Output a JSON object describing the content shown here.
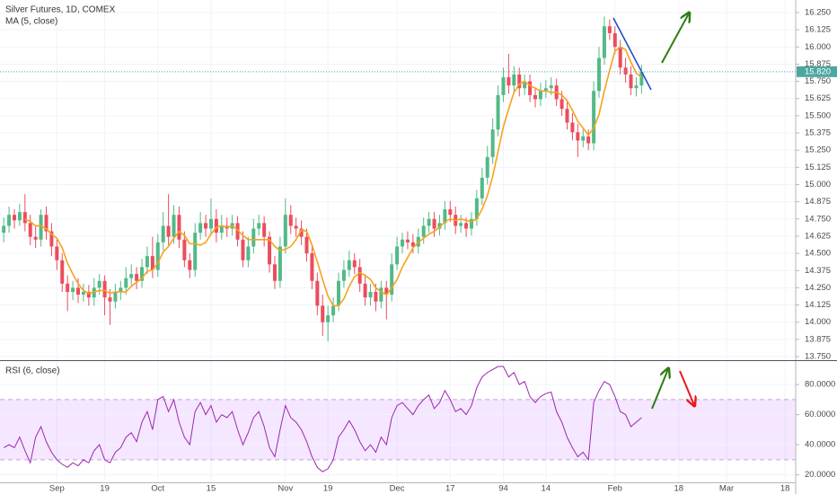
{
  "chart_data": [
    {
      "type": "candlestick",
      "title": "Silver Futures, 1D, COMEX",
      "up_color": "#53b987",
      "down_color": "#eb4d5c",
      "xlim": [
        -0.7,
        149
      ],
      "ylim": [
        13.724,
        16.341
      ],
      "xticks": [
        {
          "value": 10,
          "label": "Sep"
        },
        19,
        {
          "value": 29,
          "label": "Oct"
        },
        {
          "value": 39,
          "label": "15"
        },
        {
          "value": 53,
          "label": "Nov"
        },
        {
          "value": 61,
          "label": "19"
        },
        {
          "value": 74,
          "label": "Dec"
        },
        {
          "value": 84,
          "label": "17"
        },
        94,
        {
          "value": 102,
          "label": "14"
        },
        {
          "value": 115,
          "label": "Feb"
        },
        {
          "value": 127,
          "label": "18"
        },
        {
          "value": 136,
          "label": "Mar"
        },
        {
          "value": 147,
          "label": "18"
        }
      ],
      "yticks": [
        {
          "value": 13.75,
          "label": "13.750"
        },
        {
          "value": 13.875,
          "label": "13.875"
        },
        {
          "value": 14,
          "label": "14.000"
        },
        {
          "value": 14.125,
          "label": "14.125"
        },
        {
          "value": 14.25,
          "label": "14.250"
        },
        {
          "value": 14.375,
          "label": "14.375"
        },
        {
          "value": 14.5,
          "label": "14.500"
        },
        {
          "value": 14.625,
          "label": "14.625"
        },
        {
          "value": 14.75,
          "label": "14.750"
        },
        {
          "value": 14.875,
          "label": "14.875"
        },
        {
          "value": 15,
          "label": "15.000"
        },
        {
          "value": 15.125,
          "label": "15.125"
        },
        {
          "value": 15.25,
          "label": "15.250"
        },
        {
          "value": 15.375,
          "label": "15.375"
        },
        {
          "value": 15.5,
          "label": "15.500"
        },
        {
          "value": 15.625,
          "label": "15.625"
        },
        {
          "value": 15.75,
          "label": "15.750"
        },
        {
          "value": 15.875,
          "label": "15.875"
        },
        {
          "value": 16,
          "label": "16.000"
        },
        {
          "value": 16.125,
          "label": "16.125"
        },
        {
          "value": 16.25,
          "label": "16.250"
        }
      ],
      "grid": true,
      "last_price": {
        "value": 15.82,
        "label": "15.820"
      },
      "last_price_color": "#4ca7a1",
      "open": [
        14.65,
        14.7,
        14.78,
        14.74,
        14.8,
        14.72,
        14.62,
        14.6,
        14.78,
        14.66,
        14.55,
        14.45,
        14.28,
        14.22,
        14.25,
        14.2,
        14.22,
        14.18,
        14.25,
        14.3,
        14.18,
        14.15,
        14.22,
        14.25,
        14.32,
        14.35,
        14.3,
        14.4,
        14.48,
        14.38,
        14.58,
        14.7,
        14.62,
        14.78,
        14.6,
        14.45,
        14.38,
        14.65,
        14.72,
        14.68,
        14.75,
        14.65,
        14.7,
        14.68,
        14.72,
        14.6,
        14.45,
        14.55,
        14.68,
        14.72,
        14.62,
        14.42,
        14.3,
        14.55,
        14.78,
        14.7,
        14.68,
        14.62,
        14.5,
        14.3,
        14.12,
        14.0,
        14.05,
        14.12,
        14.3,
        14.38,
        14.45,
        14.4,
        14.28,
        14.18,
        14.22,
        14.15,
        14.25,
        14.2,
        14.42,
        14.55,
        14.6,
        14.58,
        14.55,
        14.62,
        14.7,
        14.75,
        14.68,
        14.72,
        14.82,
        14.78,
        14.7,
        14.72,
        14.68,
        14.75,
        14.9,
        15.05,
        15.2,
        15.4,
        15.65,
        15.78,
        15.72,
        15.8,
        15.7,
        15.75,
        15.65,
        15.62,
        15.68,
        15.7,
        15.72,
        15.62,
        15.55,
        15.45,
        15.38,
        15.32,
        15.35,
        15.3,
        15.68,
        15.92,
        16.15,
        16.1,
        16.0,
        15.85,
        15.8,
        15.7,
        15.72
      ],
      "high": [
        14.76,
        14.84,
        14.82,
        14.86,
        14.93,
        14.78,
        14.7,
        14.82,
        14.84,
        14.72,
        14.6,
        14.5,
        14.34,
        14.3,
        14.32,
        14.28,
        14.27,
        14.32,
        14.35,
        14.34,
        14.24,
        14.28,
        14.3,
        14.4,
        14.42,
        14.4,
        14.46,
        14.55,
        14.62,
        14.64,
        14.8,
        14.93,
        14.85,
        14.84,
        14.66,
        14.5,
        14.72,
        14.8,
        14.78,
        14.9,
        14.82,
        14.78,
        14.76,
        14.78,
        14.77,
        14.66,
        14.62,
        14.75,
        14.78,
        14.77,
        14.66,
        14.48,
        14.62,
        14.9,
        14.85,
        14.76,
        14.74,
        14.68,
        14.56,
        14.36,
        14.2,
        14.12,
        14.18,
        14.36,
        14.45,
        14.52,
        14.5,
        14.46,
        14.34,
        14.28,
        14.28,
        14.3,
        14.3,
        14.5,
        14.62,
        14.65,
        14.66,
        14.64,
        14.68,
        14.76,
        14.8,
        14.8,
        14.78,
        14.88,
        14.88,
        14.84,
        14.78,
        14.76,
        14.8,
        14.96,
        15.12,
        15.28,
        15.48,
        15.72,
        15.85,
        15.95,
        15.86,
        15.85,
        15.8,
        15.8,
        15.7,
        15.74,
        15.76,
        15.78,
        15.77,
        15.68,
        15.6,
        15.52,
        15.44,
        15.4,
        15.4,
        15.75,
        16.0,
        16.22,
        16.2,
        16.15,
        16.05,
        15.92,
        15.86,
        15.78,
        15.87
      ],
      "low": [
        14.58,
        14.65,
        14.68,
        14.7,
        14.66,
        14.56,
        14.54,
        14.55,
        14.6,
        14.48,
        14.38,
        14.22,
        14.08,
        14.16,
        14.14,
        14.15,
        14.12,
        14.12,
        14.2,
        14.05,
        13.98,
        14.1,
        14.16,
        14.2,
        14.27,
        14.24,
        14.25,
        14.35,
        14.32,
        14.33,
        14.52,
        14.56,
        14.57,
        14.54,
        14.4,
        14.32,
        14.33,
        14.6,
        14.62,
        14.63,
        14.58,
        14.6,
        14.62,
        14.63,
        14.55,
        14.4,
        14.4,
        14.5,
        14.63,
        14.55,
        14.36,
        14.24,
        14.25,
        14.5,
        14.64,
        14.62,
        14.56,
        14.44,
        14.24,
        14.05,
        13.9,
        13.86,
        14.0,
        14.08,
        14.25,
        14.33,
        14.35,
        14.22,
        14.12,
        14.12,
        14.08,
        14.1,
        14.02,
        14.15,
        14.38,
        14.5,
        14.53,
        14.5,
        14.5,
        14.57,
        14.65,
        14.62,
        14.63,
        14.67,
        14.73,
        14.64,
        14.65,
        14.62,
        14.63,
        14.7,
        14.85,
        15.0,
        15.15,
        15.35,
        15.6,
        15.66,
        15.67,
        15.64,
        15.65,
        15.6,
        15.56,
        15.57,
        15.63,
        15.65,
        15.57,
        15.5,
        15.4,
        15.32,
        15.2,
        15.27,
        15.25,
        15.25,
        15.63,
        15.87,
        16.05,
        15.95,
        15.8,
        15.74,
        15.65,
        15.64,
        15.66
      ],
      "close": [
        14.7,
        14.78,
        14.74,
        14.8,
        14.72,
        14.62,
        14.6,
        14.78,
        14.66,
        14.55,
        14.45,
        14.28,
        14.22,
        14.25,
        14.2,
        14.22,
        14.18,
        14.25,
        14.3,
        14.18,
        14.15,
        14.22,
        14.25,
        14.32,
        14.35,
        14.3,
        14.4,
        14.48,
        14.38,
        14.58,
        14.7,
        14.62,
        14.78,
        14.6,
        14.45,
        14.38,
        14.65,
        14.72,
        14.68,
        14.75,
        14.65,
        14.7,
        14.68,
        14.72,
        14.6,
        14.45,
        14.55,
        14.68,
        14.72,
        14.62,
        14.42,
        14.3,
        14.55,
        14.78,
        14.7,
        14.68,
        14.62,
        14.5,
        14.3,
        14.12,
        14.0,
        14.05,
        14.12,
        14.3,
        14.38,
        14.45,
        14.4,
        14.28,
        14.18,
        14.22,
        14.15,
        14.25,
        14.2,
        14.42,
        14.55,
        14.6,
        14.58,
        14.55,
        14.62,
        14.7,
        14.75,
        14.68,
        14.72,
        14.82,
        14.78,
        14.7,
        14.72,
        14.68,
        14.75,
        14.9,
        15.05,
        15.2,
        15.4,
        15.65,
        15.78,
        15.72,
        15.8,
        15.7,
        15.75,
        15.65,
        15.62,
        15.68,
        15.7,
        15.72,
        15.62,
        15.55,
        15.45,
        15.38,
        15.32,
        15.35,
        15.3,
        15.68,
        15.92,
        16.15,
        16.1,
        16.0,
        15.85,
        15.8,
        15.7,
        15.72,
        15.82
      ],
      "series": [
        {
          "name": "MA (5, close)",
          "color": "#f7a21b",
          "values": [
            null,
            null,
            null,
            null,
            14.75,
            14.73,
            14.7,
            14.7,
            14.68,
            14.64,
            14.61,
            14.54,
            14.43,
            14.35,
            14.28,
            14.23,
            14.21,
            14.22,
            14.23,
            14.23,
            14.21,
            14.22,
            14.22,
            14.22,
            14.26,
            14.29,
            14.32,
            14.37,
            14.38,
            14.43,
            14.51,
            14.55,
            14.61,
            14.66,
            14.63,
            14.57,
            14.57,
            14.56,
            14.58,
            14.64,
            14.69,
            14.7,
            14.69,
            14.7,
            14.67,
            14.63,
            14.6,
            14.6,
            14.6,
            14.6,
            14.6,
            14.55,
            14.52,
            14.53,
            14.55,
            14.6,
            14.67,
            14.66,
            14.56,
            14.44,
            14.31,
            14.19,
            14.12,
            14.12,
            14.17,
            14.26,
            14.33,
            14.36,
            14.34,
            14.31,
            14.25,
            14.22,
            14.2,
            14.25,
            14.31,
            14.4,
            14.47,
            14.54,
            14.58,
            14.61,
            14.64,
            14.66,
            14.69,
            14.73,
            14.75,
            14.74,
            14.75,
            14.74,
            14.73,
            14.75,
            14.82,
            14.92,
            15.06,
            15.24,
            15.42,
            15.55,
            15.67,
            15.73,
            15.75,
            15.72,
            15.7,
            15.68,
            15.68,
            15.67,
            15.67,
            15.65,
            15.61,
            15.54,
            15.46,
            15.41,
            15.36,
            15.41,
            15.51,
            15.68,
            15.83,
            15.97,
            16.0,
            15.98,
            15.89,
            15.81,
            15.78
          ]
        }
      ]
    },
    {
      "type": "line",
      "ylim": [
        15,
        95
      ],
      "yticks": [
        {
          "value": 20,
          "label": "20.0000"
        },
        {
          "value": 40,
          "label": "40.0000"
        },
        {
          "value": 60,
          "label": "60.0000"
        },
        {
          "value": 80,
          "label": "80.0000"
        }
      ],
      "band": [
        30,
        70
      ],
      "band_color": "#9915ff",
      "series": [
        {
          "name": "RSI (6, close)",
          "color": "#9c27b0",
          "values": [
            38,
            40,
            38,
            45,
            36,
            28,
            45,
            52,
            42,
            35,
            30,
            27,
            25,
            28,
            26,
            30,
            28,
            36,
            40,
            30,
            28,
            35,
            38,
            45,
            48,
            42,
            55,
            62,
            50,
            70,
            72,
            62,
            70,
            55,
            45,
            40,
            62,
            68,
            60,
            66,
            55,
            60,
            58,
            62,
            50,
            40,
            48,
            58,
            62,
            52,
            38,
            32,
            50,
            66,
            58,
            55,
            50,
            42,
            32,
            25,
            22,
            24,
            30,
            45,
            50,
            56,
            50,
            42,
            36,
            40,
            35,
            45,
            40,
            58,
            66,
            68,
            64,
            60,
            66,
            70,
            73,
            64,
            68,
            76,
            70,
            62,
            64,
            60,
            66,
            78,
            85,
            88,
            90,
            92,
            92,
            85,
            88,
            80,
            82,
            72,
            68,
            72,
            74,
            75,
            62,
            55,
            45,
            38,
            32,
            35,
            30,
            68,
            76,
            82,
            80,
            72,
            62,
            60,
            52,
            55,
            58
          ]
        }
      ]
    }
  ]
}
